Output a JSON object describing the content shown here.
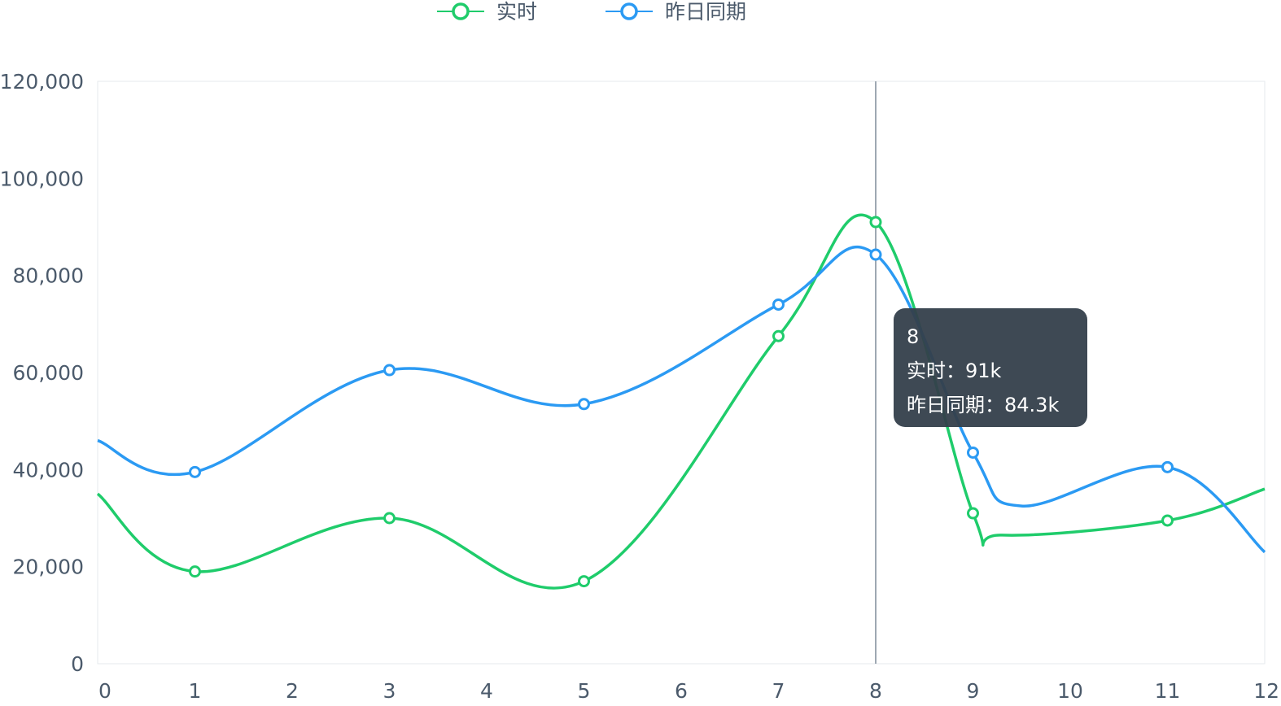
{
  "chart_data": {
    "type": "line",
    "smooth": true,
    "x": [
      0,
      1,
      2,
      3,
      4,
      5,
      6,
      7,
      8,
      9,
      10,
      11,
      12
    ],
    "series": [
      {
        "name": "实时",
        "color": "#1fcc6b",
        "points": [
          [
            0,
            35000
          ],
          [
            1,
            19000
          ],
          [
            3,
            30000
          ],
          [
            5,
            17000
          ],
          [
            7,
            67500
          ],
          [
            8,
            91000
          ],
          [
            9,
            31000
          ],
          [
            9.3,
            26500
          ],
          [
            11,
            29500
          ],
          [
            12,
            36000
          ]
        ],
        "markers": [
          1,
          3,
          5,
          7,
          8,
          9,
          11
        ]
      },
      {
        "name": "昨日同期",
        "color": "#2b9af3",
        "points": [
          [
            0,
            46000
          ],
          [
            1,
            39500
          ],
          [
            3,
            60500
          ],
          [
            5,
            53500
          ],
          [
            7,
            74000
          ],
          [
            8,
            84300
          ],
          [
            9,
            43500
          ],
          [
            9.5,
            32500
          ],
          [
            11,
            40500
          ],
          [
            12,
            23000
          ]
        ],
        "markers": [
          1,
          3,
          5,
          7,
          8,
          9,
          11
        ]
      }
    ],
    "y_ticks": [
      "0",
      "20,000",
      "40,000",
      "60,000",
      "80,000",
      "100,000",
      "120,000"
    ],
    "x_ticks": [
      "0",
      "1",
      "2",
      "3",
      "4",
      "5",
      "6",
      "7",
      "8",
      "9",
      "10",
      "11",
      "12"
    ],
    "ylim": [
      0,
      120000
    ],
    "xlim": [
      0,
      12
    ],
    "legend_position": "top-center",
    "grid": false,
    "crosshair_x": 8
  },
  "legend": [
    {
      "label": "实时",
      "color": "#1fcc6b"
    },
    {
      "label": "昨日同期",
      "color": "#2b9af3"
    }
  ],
  "tooltip": {
    "title": "8",
    "rows": [
      {
        "label": "实时",
        "value": "91k"
      },
      {
        "label": "昨日同期",
        "value": "84.3k"
      }
    ]
  }
}
